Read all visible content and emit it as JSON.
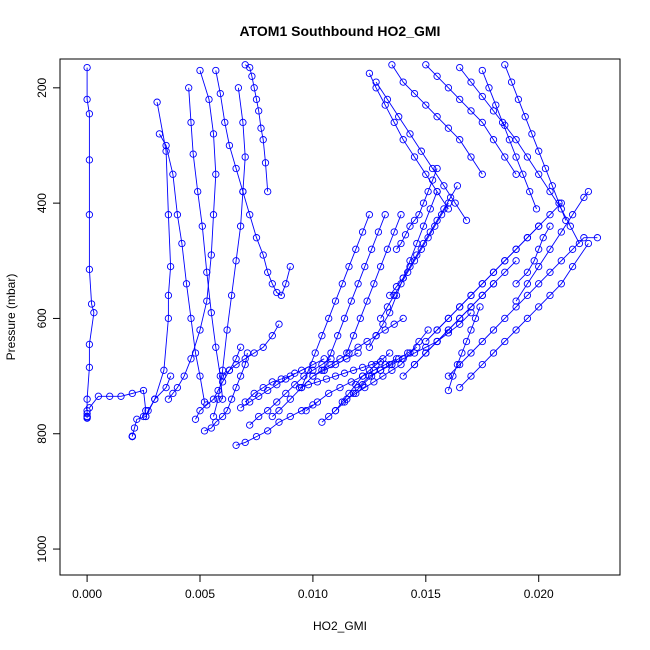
{
  "chart_data": {
    "type": "line",
    "title": "ATOM1 Southbound HO2_GMI",
    "xlabel": "HO2_GMI",
    "ylabel": "Pressure (mbar)",
    "xlim": [
      -0.0012,
      0.0236
    ],
    "ylim": [
      1045,
      150
    ],
    "y_axis_inverted": true,
    "x_ticks": [
      0.0,
      0.005,
      0.01,
      0.015,
      0.02
    ],
    "x_tick_labels": [
      "0.000",
      "0.005",
      "0.010",
      "0.015",
      "0.020"
    ],
    "y_ticks": [
      200,
      400,
      600,
      800,
      1000
    ],
    "y_tick_labels": [
      "200",
      "400",
      "600",
      "800",
      "1000"
    ],
    "series_color": "#0000ff",
    "marker": "open-circle",
    "grid": false,
    "series": [
      {
        "x": [
          0.0,
          0.0,
          0.0001,
          0.0001,
          0.0001,
          0.0001,
          0.0002,
          0.0003,
          0.0001,
          0.0001,
          0.0,
          0.0,
          0.0,
          0.0,
          0.0,
          0.0,
          0.0
        ],
        "y": [
          165,
          220,
          245,
          325,
          420,
          515,
          575,
          590,
          645,
          685,
          740,
          760,
          765,
          770,
          770,
          772,
          773
        ]
      },
      {
        "x": [
          0.0001,
          0.0005,
          0.001,
          0.0015,
          0.002,
          0.0025,
          0.0026,
          0.0025
        ],
        "y": [
          755,
          735,
          735,
          735,
          730,
          725,
          760,
          770
        ]
      },
      {
        "x": [
          0.002,
          0.002,
          0.002,
          0.0021,
          0.0022,
          0.0026,
          0.003,
          0.0035,
          0.0037
        ],
        "y": [
          805,
          805,
          804,
          790,
          775,
          770,
          740,
          720,
          700
        ]
      },
      {
        "x": [
          0.0026,
          0.0027,
          0.003,
          0.0034,
          0.0036,
          0.0036,
          0.0037,
          0.0036,
          0.0035,
          0.0031
        ],
        "y": [
          770,
          760,
          740,
          690,
          600,
          560,
          510,
          420,
          310,
          225
        ]
      },
      {
        "x": [
          0.0032,
          0.0035,
          0.0038,
          0.004,
          0.0042,
          0.0044,
          0.0046,
          0.0048,
          0.005,
          0.0052
        ],
        "y": [
          280,
          300,
          350,
          420,
          470,
          540,
          600,
          660,
          700,
          745
        ]
      },
      {
        "x": [
          0.0036,
          0.0038,
          0.004,
          0.0043,
          0.0046,
          0.005,
          0.0053,
          0.0055,
          0.0056,
          0.0057,
          0.0056,
          0.0054,
          0.005
        ],
        "y": [
          740,
          730,
          720,
          700,
          670,
          620,
          570,
          490,
          420,
          350,
          280,
          220,
          170
        ]
      },
      {
        "x": [
          0.0045,
          0.0046,
          0.0047,
          0.0049,
          0.0051,
          0.0053,
          0.0055,
          0.0057,
          0.0059,
          0.006
        ],
        "y": [
          200,
          260,
          315,
          380,
          440,
          520,
          590,
          650,
          700,
          740
        ]
      },
      {
        "x": [
          0.0048,
          0.005,
          0.0053,
          0.0056,
          0.0058,
          0.006,
          0.0063,
          0.0066,
          0.0068
        ],
        "y": [
          775,
          760,
          750,
          740,
          725,
          710,
          690,
          670,
          650
        ]
      },
      {
        "x": [
          0.0052,
          0.0055,
          0.0057,
          0.006,
          0.0062,
          0.0064,
          0.0066,
          0.0068,
          0.007,
          0.0071
        ],
        "y": [
          795,
          790,
          780,
          770,
          760,
          740,
          720,
          700,
          680,
          660
        ]
      },
      {
        "x": [
          0.0056,
          0.0058,
          0.006,
          0.0062,
          0.0064,
          0.0066,
          0.0068,
          0.0069,
          0.007,
          0.0069,
          0.0067
        ],
        "y": [
          770,
          740,
          690,
          620,
          560,
          500,
          440,
          380,
          320,
          260,
          200
        ]
      },
      {
        "x": [
          0.0057,
          0.0059,
          0.0061,
          0.0063,
          0.0066,
          0.0069,
          0.0072,
          0.0075,
          0.0078,
          0.008,
          0.0082,
          0.0084,
          0.0086,
          0.0088,
          0.009
        ],
        "y": [
          170,
          210,
          260,
          300,
          340,
          380,
          420,
          460,
          490,
          520,
          540,
          555,
          560,
          540,
          510
        ]
      },
      {
        "x": [
          0.006,
          0.0063,
          0.0066,
          0.007,
          0.0074,
          0.0078,
          0.0082,
          0.0085
        ],
        "y": [
          700,
          690,
          680,
          670,
          660,
          650,
          630,
          610
        ]
      },
      {
        "x": [
          0.0066,
          0.007,
          0.0075,
          0.008,
          0.0085,
          0.009,
          0.0095,
          0.01
        ],
        "y": [
          820,
          815,
          805,
          795,
          780,
          770,
          760,
          750
        ]
      },
      {
        "x": [
          0.0068,
          0.0072,
          0.0076,
          0.008,
          0.0084,
          0.0088,
          0.0092
        ],
        "y": [
          755,
          745,
          735,
          725,
          715,
          705,
          695
        ]
      },
      {
        "x": [
          0.007,
          0.0074,
          0.0078,
          0.0082,
          0.0086,
          0.009,
          0.0095,
          0.01,
          0.0105
        ],
        "y": [
          745,
          730,
          720,
          710,
          705,
          700,
          690,
          680,
          670
        ]
      },
      {
        "x": [
          0.0072,
          0.0076,
          0.008,
          0.0084,
          0.0088,
          0.0092,
          0.0096,
          0.01,
          0.0104,
          0.0108
        ],
        "y": [
          785,
          770,
          760,
          745,
          730,
          715,
          700,
          690,
          680,
          670
        ]
      },
      {
        "x": [
          0.008,
          0.0079,
          0.0078,
          0.0077,
          0.0076,
          0.0075,
          0.0074,
          0.0073,
          0.0072,
          0.007
        ],
        "y": [
          380,
          330,
          290,
          270,
          240,
          220,
          200,
          180,
          165,
          160
        ]
      },
      {
        "x": [
          0.0082,
          0.0085,
          0.009,
          0.0095,
          0.01,
          0.0105,
          0.011,
          0.0115,
          0.012
        ],
        "y": [
          770,
          760,
          740,
          720,
          700,
          690,
          680,
          670,
          660
        ]
      },
      {
        "x": [
          0.0094,
          0.0098,
          0.0102,
          0.0106,
          0.011,
          0.0114,
          0.0118,
          0.0122,
          0.0126,
          0.013
        ],
        "y": [
          720,
          715,
          710,
          705,
          700,
          695,
          690,
          685,
          680,
          675
        ]
      },
      {
        "x": [
          0.0097,
          0.0102,
          0.0107,
          0.0112,
          0.0117,
          0.0122,
          0.0127,
          0.0132,
          0.0137
        ],
        "y": [
          760,
          745,
          730,
          720,
          710,
          700,
          690,
          680,
          670
        ]
      },
      {
        "x": [
          0.01,
          0.0104,
          0.0108,
          0.0112,
          0.0116,
          0.012,
          0.0124,
          0.0128,
          0.0132,
          0.0136,
          0.014
        ],
        "y": [
          700,
          690,
          680,
          670,
          660,
          650,
          640,
          630,
          620,
          610,
          600
        ]
      },
      {
        "x": [
          0.0104,
          0.0107,
          0.011,
          0.0113,
          0.0116,
          0.0119,
          0.0122,
          0.0125,
          0.0128,
          0.0131,
          0.0134
        ],
        "y": [
          780,
          770,
          760,
          745,
          730,
          715,
          700,
          690,
          680,
          670,
          660
        ]
      },
      {
        "x": [
          0.011,
          0.0114,
          0.0118,
          0.0122,
          0.0126,
          0.013,
          0.0134,
          0.0138,
          0.0142,
          0.0146
        ],
        "y": [
          760,
          745,
          730,
          715,
          700,
          690,
          680,
          670,
          660,
          650
        ]
      },
      {
        "x": [
          0.0115,
          0.0119,
          0.0123,
          0.0127,
          0.0131,
          0.0135,
          0.0139,
          0.0143,
          0.0147,
          0.0151
        ],
        "y": [
          740,
          730,
          720,
          710,
          700,
          690,
          680,
          660,
          640,
          620
        ]
      },
      {
        "x": [
          0.012,
          0.0125,
          0.013,
          0.0135,
          0.014,
          0.0145,
          0.015,
          0.0155,
          0.016,
          0.0165,
          0.017
        ],
        "y": [
          720,
          700,
          690,
          680,
          670,
          660,
          650,
          640,
          625,
          610,
          590
        ]
      },
      {
        "x": [
          0.0125,
          0.0128,
          0.0131,
          0.0134,
          0.0137,
          0.014,
          0.0143,
          0.0146,
          0.0149,
          0.0152,
          0.0155
        ],
        "y": [
          650,
          630,
          610,
          590,
          560,
          530,
          500,
          470,
          440,
          410,
          380
        ]
      },
      {
        "x": [
          0.013,
          0.0133,
          0.0136,
          0.0139,
          0.0142,
          0.0145,
          0.0148,
          0.0151,
          0.0154,
          0.0157,
          0.016
        ],
        "y": [
          600,
          580,
          560,
          540,
          520,
          500,
          480,
          460,
          440,
          420,
          400
        ]
      },
      {
        "x": [
          0.0134,
          0.0137,
          0.014,
          0.0143,
          0.0146,
          0.0149,
          0.0152,
          0.0155,
          0.0158,
          0.0161,
          0.0164
        ],
        "y": [
          560,
          545,
          530,
          510,
          490,
          470,
          450,
          430,
          410,
          390,
          370
        ]
      },
      {
        "x": [
          0.0137,
          0.0139,
          0.0141,
          0.0143,
          0.0145,
          0.0147,
          0.0149,
          0.0151,
          0.0153,
          0.0155
        ],
        "y": [
          480,
          470,
          455,
          440,
          430,
          420,
          400,
          380,
          360,
          340
        ]
      },
      {
        "x": [
          0.014,
          0.0145,
          0.015,
          0.0155,
          0.016,
          0.0165,
          0.017,
          0.0175,
          0.018
        ],
        "y": [
          700,
          680,
          660,
          640,
          620,
          600,
          580,
          560,
          540
        ]
      },
      {
        "x": [
          0.0145,
          0.015,
          0.0155,
          0.016,
          0.0165,
          0.017,
          0.0175,
          0.018,
          0.0185,
          0.019
        ],
        "y": [
          680,
          660,
          640,
          620,
          600,
          580,
          560,
          540,
          520,
          500
        ]
      },
      {
        "x": [
          0.015,
          0.0155,
          0.016,
          0.0165,
          0.017,
          0.0175,
          0.018,
          0.0185,
          0.019,
          0.0195,
          0.02
        ],
        "y": [
          640,
          620,
          600,
          580,
          560,
          540,
          520,
          500,
          480,
          460,
          440
        ]
      },
      {
        "x": [
          0.0155,
          0.016,
          0.0165,
          0.017,
          0.0175,
          0.018,
          0.0185,
          0.019,
          0.0195,
          0.02,
          0.0205,
          0.021
        ],
        "y": [
          620,
          600,
          580,
          560,
          540,
          520,
          500,
          480,
          460,
          440,
          420,
          400
        ]
      },
      {
        "x": [
          0.016,
          0.0165,
          0.017,
          0.0175,
          0.018,
          0.0185,
          0.019,
          0.0195,
          0.02,
          0.0205,
          0.021,
          0.0215,
          0.022,
          0.0226
        ],
        "y": [
          700,
          680,
          660,
          640,
          620,
          600,
          580,
          560,
          540,
          520,
          500,
          480,
          460,
          460
        ]
      },
      {
        "x": [
          0.0165,
          0.017,
          0.0175,
          0.018,
          0.0185,
          0.019,
          0.0195,
          0.02,
          0.0205,
          0.021,
          0.0215,
          0.0222
        ],
        "y": [
          720,
          700,
          680,
          660,
          640,
          620,
          600,
          580,
          560,
          540,
          510,
          470
        ]
      },
      {
        "x": [
          0.0125,
          0.0128,
          0.0132,
          0.0136,
          0.014,
          0.0145,
          0.015,
          0.0155,
          0.016
        ],
        "y": [
          175,
          200,
          230,
          260,
          290,
          320,
          350,
          380,
          410
        ]
      },
      {
        "x": [
          0.0128,
          0.0133,
          0.0138,
          0.0143,
          0.0148,
          0.0153,
          0.0158,
          0.0163,
          0.0168
        ],
        "y": [
          190,
          220,
          250,
          280,
          310,
          340,
          370,
          400,
          430
        ]
      },
      {
        "x": [
          0.0135,
          0.014,
          0.0145,
          0.015,
          0.0155,
          0.016,
          0.0165,
          0.017,
          0.0175
        ],
        "y": [
          160,
          190,
          210,
          230,
          250,
          270,
          290,
          320,
          350
        ]
      },
      {
        "x": [
          0.015,
          0.0155,
          0.016,
          0.0165,
          0.017,
          0.0175,
          0.018,
          0.0185,
          0.019
        ],
        "y": [
          160,
          180,
          200,
          220,
          240,
          260,
          290,
          320,
          350
        ]
      },
      {
        "x": [
          0.0165,
          0.017,
          0.0175,
          0.018,
          0.0185,
          0.019,
          0.0195,
          0.02,
          0.0205,
          0.021,
          0.0214,
          0.0218
        ],
        "y": [
          165,
          190,
          215,
          240,
          265,
          290,
          320,
          350,
          380,
          410,
          440,
          470
        ]
      },
      {
        "x": [
          0.0175,
          0.0178,
          0.0181,
          0.0184,
          0.0187,
          0.019,
          0.0193,
          0.0196,
          0.0199
        ],
        "y": [
          170,
          200,
          230,
          260,
          290,
          320,
          350,
          380,
          410
        ]
      },
      {
        "x": [
          0.0185,
          0.0188,
          0.0191,
          0.0194,
          0.0197,
          0.02,
          0.0203,
          0.0206,
          0.0209,
          0.0212
        ],
        "y": [
          160,
          190,
          220,
          250,
          280,
          310,
          340,
          370,
          400,
          430
        ]
      },
      {
        "x": [
          0.0095,
          0.0098,
          0.0101,
          0.0104,
          0.0107,
          0.011,
          0.0113,
          0.0116,
          0.0119,
          0.0122,
          0.0125
        ],
        "y": [
          720,
          690,
          660,
          630,
          600,
          570,
          540,
          510,
          480,
          450,
          420
        ]
      },
      {
        "x": [
          0.0105,
          0.0108,
          0.0111,
          0.0114,
          0.0117,
          0.012,
          0.0123,
          0.0126,
          0.0129,
          0.0132
        ],
        "y": [
          690,
          660,
          630,
          600,
          570,
          540,
          510,
          480,
          450,
          420
        ]
      },
      {
        "x": [
          0.0115,
          0.0118,
          0.0121,
          0.0124,
          0.0127,
          0.013,
          0.0133,
          0.0136,
          0.0139
        ],
        "y": [
          660,
          630,
          600,
          570,
          540,
          510,
          480,
          450,
          420
        ]
      },
      {
        "x": [
          0.019,
          0.0195,
          0.0198,
          0.02,
          0.0202,
          0.0205
        ],
        "y": [
          540,
          520,
          500,
          480,
          460,
          440
        ]
      },
      {
        "x": [
          0.0222,
          0.022,
          0.0215,
          0.021,
          0.0205,
          0.02,
          0.0195,
          0.019
        ],
        "y": [
          380,
          390,
          420,
          450,
          480,
          510,
          540,
          570
        ]
      },
      {
        "x": [
          0.016,
          0.0162,
          0.0164,
          0.0166,
          0.0168,
          0.017,
          0.0172,
          0.0174
        ],
        "y": [
          725,
          700,
          680,
          660,
          640,
          620,
          600,
          580
        ]
      }
    ]
  }
}
